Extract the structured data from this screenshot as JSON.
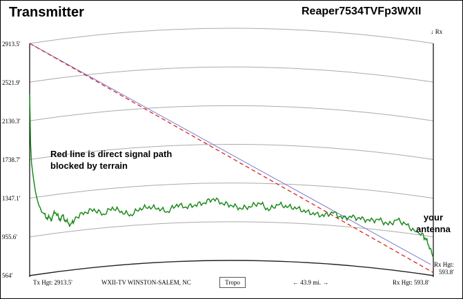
{
  "header": {
    "title": "Transmitter",
    "callsign": "Reaper7534TVFp3WXII"
  },
  "annotations": {
    "red_line_note_1": "Red line is direct signal path",
    "red_line_note_2": "blocked by terrain",
    "antenna_note_1": "your",
    "antenna_note_2": "antenna"
  },
  "y_axis": {
    "labels": [
      "2913.5'",
      "2521.9'",
      "2130.3'",
      "1738.7'",
      "1347.1'",
      "955.6'",
      "564'"
    ]
  },
  "rx_marker": "↓ Rx",
  "footer": {
    "tx_height": "Tx Hgt: 2913.5'",
    "station": "WXII-TV WINSTON-SALEM, NC",
    "tropo_button": "Tropo",
    "distance": "← 43.9 mi. →",
    "rx_height": "Rx Hgt: 593.8'"
  },
  "rx_side": {
    "label": "Rx Hgt:",
    "value": "593.8'"
  },
  "colors": {
    "terrain": "#1c8a1c",
    "direct_path": "#d9251d",
    "los_path": "#7a7ad0",
    "grid": "#aaaaaa"
  },
  "chart_data": {
    "type": "line",
    "ylim": [
      564,
      2913.5
    ],
    "xlim": [
      0,
      43.9
    ],
    "series": [
      {
        "x": [
          0,
          0.1,
          0.2,
          0.4,
          0.6,
          0.8,
          1.0,
          1.3,
          1.6,
          2.0,
          2.4,
          2.8,
          3.2,
          3.6,
          4.0,
          4.5,
          5.0,
          6.0,
          7.0,
          8.0,
          9.0,
          10.0,
          11.0,
          12.0,
          13.0,
          14.0,
          15.0,
          16.0,
          17.0,
          18.0,
          19.0,
          20.0,
          21.0,
          22.0,
          23.0,
          24.0,
          25.0,
          26.0,
          27.0,
          28.0,
          29.0,
          30.0,
          31.0,
          32.0,
          33.0,
          34.0,
          35.0,
          36.0,
          37.0,
          38.0,
          39.0,
          40.0,
          41.0,
          42.0,
          42.8,
          43.4,
          43.9
        ],
        "values": [
          2400,
          1900,
          1700,
          1550,
          1420,
          1330,
          1260,
          1200,
          1150,
          1120,
          1110,
          1180,
          1090,
          1120,
          1060,
          1020,
          1090,
          1130,
          1150,
          1090,
          1150,
          1100,
          1060,
          1120,
          1130,
          1110,
          1070,
          1140,
          1110,
          1130,
          1150,
          1190,
          1140,
          1120,
          1090,
          1110,
          1150,
          1080,
          1140,
          1120,
          1110,
          1080,
          1060,
          1050,
          1090,
          1040,
          1060,
          1050,
          1040,
          1060,
          1020,
          1080,
          1040,
          980,
          960,
          870,
          740
        ]
      }
    ]
  }
}
